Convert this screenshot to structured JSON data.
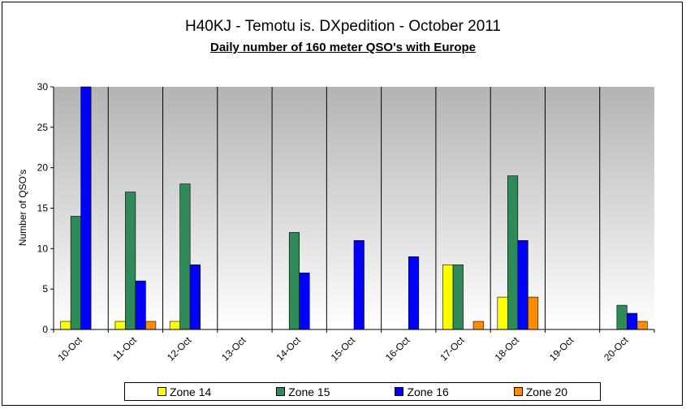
{
  "chart_data": {
    "type": "bar",
    "title": "H40KJ - Temotu is. DXpedition - October 2011",
    "subtitle": "Daily number of 160 meter QSO's with Europe",
    "xlabel": "",
    "ylabel": "Number of QSO's",
    "ylim": [
      0,
      30
    ],
    "yticks": [
      0,
      5,
      10,
      15,
      20,
      25,
      30
    ],
    "grid": "vertical separators between categories",
    "legend_position": "bottom",
    "categories": [
      "10-Oct",
      "11-Oct",
      "12-Oct",
      "13-Oct",
      "14-Oct",
      "15-Oct",
      "16-Oct",
      "17-Oct",
      "18-Oct",
      "19-Oct",
      "20-Oct"
    ],
    "series": [
      {
        "name": "Zone 14",
        "color": "#FFFF00",
        "values": [
          1,
          1,
          1,
          0,
          0,
          0,
          0,
          8,
          4,
          0,
          0
        ]
      },
      {
        "name": "Zone 15",
        "color": "#2E8B57",
        "values": [
          14,
          17,
          18,
          0,
          12,
          0,
          0,
          8,
          19,
          0,
          3
        ]
      },
      {
        "name": "Zone 16",
        "color": "#0000FF",
        "values": [
          30,
          6,
          8,
          0,
          7,
          11,
          9,
          0,
          11,
          0,
          2
        ]
      },
      {
        "name": "Zone 20",
        "color": "#FF8C00",
        "values": [
          0,
          1,
          0,
          0,
          0,
          0,
          0,
          1,
          4,
          0,
          1
        ]
      }
    ]
  }
}
